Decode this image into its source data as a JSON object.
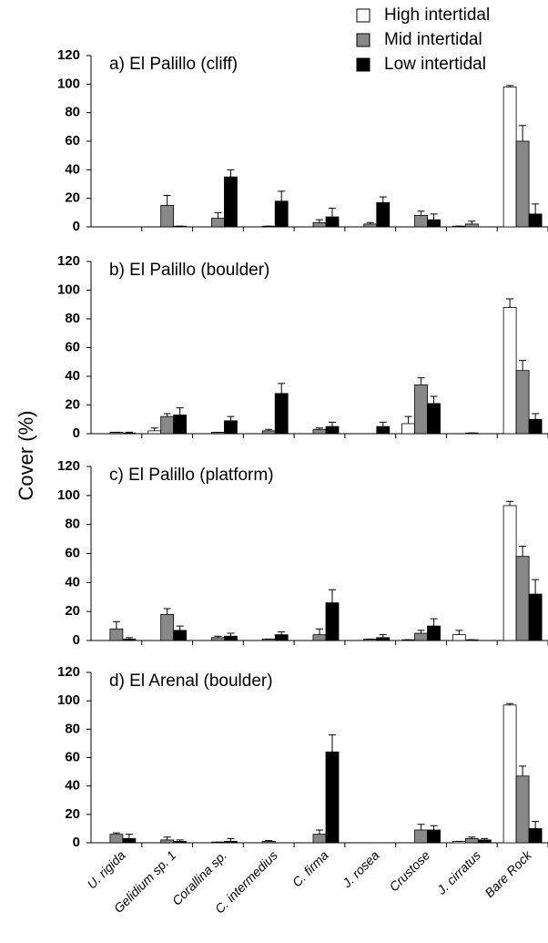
{
  "ylabel": "Cover  (%)",
  "chart_data": [
    {
      "type": "bar",
      "title": "a) El Palillo (cliff)",
      "ylim": [
        0,
        120
      ],
      "yticks": [
        0,
        20,
        40,
        60,
        80,
        100,
        120
      ],
      "legend": "upper right",
      "series": [
        {
          "name": "High intertidal",
          "color": "#ffffff",
          "values": [
            0,
            0,
            0,
            0,
            0,
            0,
            0,
            0.5,
            98
          ],
          "errors": [
            0,
            0,
            0,
            0,
            0,
            0,
            0,
            0,
            1
          ]
        },
        {
          "name": "Mid intertidal",
          "color": "#888888",
          "values": [
            0,
            15,
            6,
            0.5,
            3,
            2,
            8,
            2,
            60
          ],
          "errors": [
            0,
            7,
            4,
            0,
            2,
            1,
            3,
            2,
            11
          ]
        },
        {
          "name": "Low intertidal",
          "color": "#000000",
          "values": [
            0,
            0.5,
            35,
            18,
            7,
            17,
            5,
            0,
            9
          ],
          "errors": [
            0,
            0,
            5,
            7,
            6,
            4,
            4,
            0,
            7
          ]
        }
      ]
    },
    {
      "type": "bar",
      "title": "b) El Palillo (boulder)",
      "ylim": [
        0,
        120
      ],
      "yticks": [
        0,
        20,
        40,
        60,
        80,
        100,
        120
      ],
      "series": [
        {
          "color": "#ffffff",
          "values": [
            0,
            2,
            0,
            0,
            0,
            0,
            7,
            0,
            88
          ],
          "errors": [
            0,
            2,
            0,
            0,
            0,
            0,
            5,
            0,
            6
          ]
        },
        {
          "color": "#888888",
          "values": [
            1,
            12,
            1,
            2,
            3,
            0,
            34,
            0.5,
            44
          ],
          "errors": [
            0,
            2,
            0,
            1,
            1,
            0,
            5,
            0,
            7
          ]
        },
        {
          "color": "#000000",
          "values": [
            0.5,
            13,
            9,
            28,
            5,
            5,
            21,
            0,
            10
          ],
          "errors": [
            0.5,
            5,
            3,
            7,
            3,
            3,
            5,
            0,
            4
          ]
        }
      ]
    },
    {
      "type": "bar",
      "title": "c) El Palillo (platform)",
      "ylim": [
        0,
        120
      ],
      "yticks": [
        0,
        20,
        40,
        60,
        80,
        100,
        120
      ],
      "series": [
        {
          "color": "#ffffff",
          "values": [
            0,
            0,
            0,
            0,
            0,
            0,
            0.5,
            4,
            93
          ],
          "errors": [
            0,
            0,
            0,
            0,
            0,
            0,
            0,
            3,
            3
          ]
        },
        {
          "color": "#888888",
          "values": [
            8,
            18,
            2,
            1,
            4,
            1,
            5,
            0.5,
            58
          ],
          "errors": [
            5,
            4,
            1,
            0,
            4,
            0,
            2,
            0,
            7
          ]
        },
        {
          "color": "#000000",
          "values": [
            1,
            7,
            3,
            4,
            26,
            2,
            10,
            0,
            32
          ],
          "errors": [
            1,
            3,
            2,
            2,
            9,
            2,
            5,
            0,
            10
          ]
        }
      ]
    },
    {
      "type": "bar",
      "title": "d) El Arenal (boulder)",
      "ylim": [
        0,
        120
      ],
      "yticks": [
        0,
        20,
        40,
        60,
        80,
        100,
        120
      ],
      "categories": [
        "U. rigida",
        "Gelidium sp. 1",
        "Corallina sp.",
        "C. intermedius",
        "C. firma",
        "J. rosea",
        "Crustose",
        "J. cirratus",
        "Bare Rock"
      ],
      "series": [
        {
          "color": "#ffffff",
          "values": [
            0,
            0,
            0,
            0,
            0,
            0,
            0,
            1,
            97
          ],
          "errors": [
            0,
            0,
            0,
            0,
            0,
            0,
            0,
            0,
            1
          ]
        },
        {
          "color": "#888888",
          "values": [
            6,
            2,
            0.5,
            1,
            6,
            0,
            9,
            3,
            47
          ],
          "errors": [
            1,
            2,
            0,
            0.5,
            3,
            0,
            4,
            1,
            7
          ]
        },
        {
          "color": "#000000",
          "values": [
            3,
            1,
            1,
            0,
            64,
            0,
            9,
            2,
            10
          ],
          "errors": [
            3,
            1,
            2,
            0,
            12,
            0,
            3,
            1,
            5
          ]
        }
      ]
    }
  ]
}
